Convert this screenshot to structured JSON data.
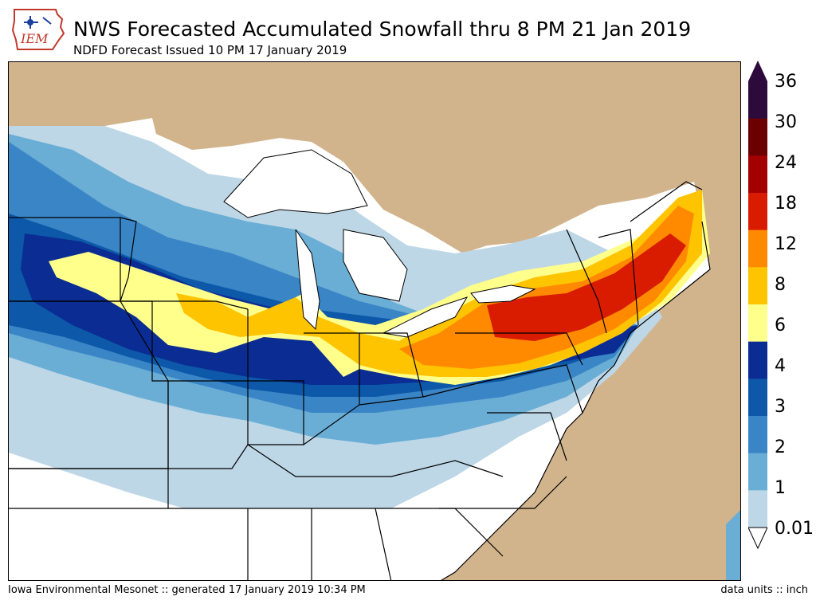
{
  "logo": {
    "text": "IEM"
  },
  "header": {
    "title": "NWS Forecasted Accumulated Snowfall thru 8 PM 21 Jan 2019",
    "subtitle": "NDFD Forecast Issued 10 PM 17 January 2019"
  },
  "legend": {
    "levels": [
      {
        "label": "36",
        "color": "#2d0a3c"
      },
      {
        "label": "30",
        "color": "#6b0000"
      },
      {
        "label": "24",
        "color": "#a30000"
      },
      {
        "label": "18",
        "color": "#d91c00"
      },
      {
        "label": "12",
        "color": "#ff8a00"
      },
      {
        "label": "8",
        "color": "#ffc400"
      },
      {
        "label": "6",
        "color": "#ffff8c"
      },
      {
        "label": "4",
        "color": "#0a2c93"
      },
      {
        "label": "3",
        "color": "#0d58a8"
      },
      {
        "label": "2",
        "color": "#3a85c6"
      },
      {
        "label": "1",
        "color": "#6aaed6"
      },
      {
        "label": "0.01",
        "color": "#bdd7e7"
      }
    ],
    "colors_top_to_bottom": [
      "#2d0a3c",
      "#6b0000",
      "#a30000",
      "#d91c00",
      "#ff8a00",
      "#ffc400",
      "#ffff8c",
      "#0a2c93",
      "#0d58a8",
      "#3a85c6",
      "#6aaed6",
      "#bdd7e7"
    ]
  },
  "map": {
    "ocean_color": "#d2b48c",
    "land_color": "#ffffff",
    "boundary_color": "#000000"
  },
  "footer": {
    "credit": "Iowa Environmental Mesonet :: generated 17 January 2019 10:34 PM",
    "units": "data units :: inch"
  }
}
